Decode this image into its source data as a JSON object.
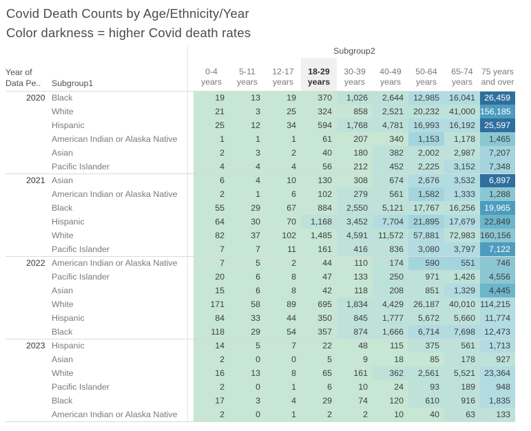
{
  "title": {
    "line1": "Covid Death Counts by Age/Ethnicity/Year",
    "line2": "Color darkness = higher Covid death rates"
  },
  "chart_data": {
    "type": "heatmap",
    "title": "Covid Death Counts by Age/Ethnicity/Year",
    "subtitle": "Color darkness = higher Covid death rates",
    "col_group_label": "Subgroup2",
    "year_header_lines": [
      "Year of",
      "Data Pe.."
    ],
    "row_label_header": "Subgroup1",
    "columns": [
      {
        "top": "0-4",
        "bottom": "years",
        "highlighted": false
      },
      {
        "top": "5-11",
        "bottom": "years",
        "highlighted": false
      },
      {
        "top": "12-17",
        "bottom": "years",
        "highlighted": false
      },
      {
        "top": "18-29",
        "bottom": "years",
        "highlighted": true
      },
      {
        "top": "30-39",
        "bottom": "years",
        "highlighted": false
      },
      {
        "top": "40-49",
        "bottom": "years",
        "highlighted": false
      },
      {
        "top": "50-64",
        "bottom": "years",
        "highlighted": false
      },
      {
        "top": "65-74",
        "bottom": "years",
        "highlighted": false
      },
      {
        "top": "75 years",
        "bottom": "and over",
        "highlighted": false
      }
    ],
    "groups": [
      {
        "year": "2020",
        "rows": [
          {
            "label": "Black",
            "values": [
              "19",
              "13",
              "19",
              "370",
              "1,026",
              "2,644",
              "12,985",
              "16,041",
              "26,459"
            ],
            "levels": [
              0,
              0,
              0,
              0,
              1,
              1,
              2,
              2,
              7
            ]
          },
          {
            "label": "White",
            "values": [
              "21",
              "3",
              "25",
              "324",
              "858",
              "2,521",
              "20,232",
              "41,000",
              "156,185"
            ],
            "levels": [
              0,
              0,
              0,
              0,
              0,
              1,
              1,
              1,
              6
            ]
          },
          {
            "label": "Hispanic",
            "values": [
              "25",
              "12",
              "34",
              "594",
              "1,768",
              "4,781",
              "16,993",
              "16,192",
              "25,597"
            ],
            "levels": [
              0,
              0,
              0,
              0,
              1,
              1,
              2,
              2,
              7
            ]
          },
          {
            "label": "American Indian or Alaska Native",
            "values": [
              "1",
              "1",
              "1",
              "61",
              "207",
              "340",
              "1,153",
              "1,178",
              "1,465"
            ],
            "levels": [
              0,
              0,
              0,
              0,
              0,
              0,
              3,
              1,
              4
            ]
          },
          {
            "label": "Asian",
            "values": [
              "2",
              "3",
              "2",
              "40",
              "180",
              "382",
              "2,002",
              "2,987",
              "7,207"
            ],
            "levels": [
              0,
              0,
              0,
              0,
              0,
              1,
              1,
              1,
              3
            ]
          },
          {
            "label": "Pacific Islander",
            "values": [
              "4",
              "4",
              "4",
              "56",
              "212",
              "452",
              "2,225",
              "3,152",
              "7,348"
            ],
            "levels": [
              0,
              0,
              0,
              0,
              0,
              1,
              1,
              2,
              3
            ]
          }
        ]
      },
      {
        "year": "2021",
        "rows": [
          {
            "label": "Asian",
            "values": [
              "6",
              "4",
              "10",
              "130",
              "308",
              "674",
              "2,676",
              "3,532",
              "6,897"
            ],
            "levels": [
              0,
              0,
              0,
              0,
              0,
              1,
              2,
              2,
              7
            ]
          },
          {
            "label": "American Indian or Alaska Native",
            "values": [
              "2",
              "1",
              "6",
              "102",
              "279",
              "561",
              "1,582",
              "1,333",
              "1,288"
            ],
            "levels": [
              0,
              0,
              0,
              0,
              1,
              1,
              3,
              2,
              4
            ]
          },
          {
            "label": "Black",
            "values": [
              "55",
              "29",
              "67",
              "884",
              "2,550",
              "5,121",
              "17,767",
              "16,256",
              "19,965"
            ],
            "levels": [
              0,
              0,
              0,
              0,
              1,
              1,
              1,
              1,
              6
            ]
          },
          {
            "label": "Hispanic",
            "values": [
              "64",
              "30",
              "70",
              "1,168",
              "3,452",
              "7,704",
              "21,895",
              "17,679",
              "22,849"
            ],
            "levels": [
              0,
              0,
              0,
              1,
              1,
              2,
              3,
              2,
              5
            ]
          },
          {
            "label": "White",
            "values": [
              "82",
              "37",
              "102",
              "1,485",
              "4,591",
              "11,572",
              "57,881",
              "72,983",
              "160,156"
            ],
            "levels": [
              0,
              0,
              0,
              0,
              1,
              1,
              2,
              1,
              4
            ]
          },
          {
            "label": "Pacific Islander",
            "values": [
              "7",
              "7",
              "11",
              "161",
              "416",
              "836",
              "3,080",
              "3,797",
              "7,122"
            ],
            "levels": [
              0,
              0,
              0,
              0,
              1,
              1,
              2,
              2,
              6
            ]
          }
        ]
      },
      {
        "year": "2022",
        "rows": [
          {
            "label": "American Indian or Alaska Native",
            "values": [
              "7",
              "5",
              "2",
              "44",
              "110",
              "174",
              "590",
              "551",
              "746"
            ],
            "levels": [
              0,
              0,
              0,
              0,
              0,
              1,
              3,
              3,
              4
            ]
          },
          {
            "label": "Pacific Islander",
            "values": [
              "20",
              "6",
              "8",
              "47",
              "133",
              "250",
              "971",
              "1,426",
              "4,556"
            ],
            "levels": [
              0,
              0,
              0,
              0,
              0,
              1,
              1,
              1,
              4
            ]
          },
          {
            "label": "Asian",
            "values": [
              "15",
              "6",
              "8",
              "42",
              "118",
              "208",
              "851",
              "1,329",
              "4,445"
            ],
            "levels": [
              0,
              0,
              0,
              0,
              0,
              1,
              1,
              2,
              5
            ]
          },
          {
            "label": "White",
            "values": [
              "171",
              "58",
              "89",
              "695",
              "1,834",
              "4,429",
              "26,187",
              "40,010",
              "114,215"
            ],
            "levels": [
              0,
              0,
              0,
              0,
              1,
              1,
              1,
              1,
              2
            ]
          },
          {
            "label": "Hispanic",
            "values": [
              "84",
              "33",
              "44",
              "350",
              "845",
              "1,777",
              "5,672",
              "5,660",
              "11,774"
            ],
            "levels": [
              0,
              0,
              0,
              0,
              1,
              1,
              1,
              1,
              2
            ]
          },
          {
            "label": "Black",
            "values": [
              "118",
              "29",
              "54",
              "357",
              "874",
              "1,666",
              "6,714",
              "7,698",
              "12,473"
            ],
            "levels": [
              0,
              0,
              0,
              0,
              1,
              1,
              2,
              2,
              2
            ]
          }
        ]
      },
      {
        "year": "2023",
        "rows": [
          {
            "label": "Hispanic",
            "values": [
              "14",
              "5",
              "7",
              "22",
              "48",
              "115",
              "375",
              "561",
              "1,713"
            ],
            "levels": [
              0,
              0,
              0,
              0,
              0,
              0,
              1,
              1,
              2
            ]
          },
          {
            "label": "Asian",
            "values": [
              "2",
              "0",
              "0",
              "5",
              "9",
              "18",
              "85",
              "178",
              "927"
            ],
            "levels": [
              0,
              0,
              0,
              0,
              0,
              0,
              0,
              1,
              1
            ]
          },
          {
            "label": "White",
            "values": [
              "16",
              "13",
              "8",
              "65",
              "161",
              "362",
              "2,561",
              "5,521",
              "23,364"
            ],
            "levels": [
              0,
              0,
              0,
              0,
              0,
              1,
              1,
              1,
              2
            ]
          },
          {
            "label": "Pacific Islander",
            "values": [
              "2",
              "0",
              "1",
              "6",
              "10",
              "24",
              "93",
              "189",
              "948"
            ],
            "levels": [
              0,
              0,
              0,
              0,
              0,
              0,
              1,
              1,
              2
            ]
          },
          {
            "label": "Black",
            "values": [
              "17",
              "3",
              "4",
              "29",
              "74",
              "120",
              "610",
              "916",
              "1,835"
            ],
            "levels": [
              0,
              0,
              0,
              0,
              0,
              0,
              1,
              1,
              2
            ]
          },
          {
            "label": "American Indian or Alaska Native",
            "values": [
              "2",
              "0",
              "1",
              "2",
              "2",
              "10",
              "40",
              "63",
              "133"
            ],
            "levels": [
              0,
              0,
              0,
              0,
              0,
              0,
              0,
              1,
              1
            ]
          }
        ]
      }
    ],
    "palette": [
      "#c7e6d4",
      "#bee2da",
      "#b2dce1",
      "#a4d5de",
      "#8bc7d3",
      "#6db5c9",
      "#4d9cbe",
      "#2e6f9e"
    ],
    "white_text_min_level": 6,
    "highlight_header_bg": "#f0f0f0"
  }
}
